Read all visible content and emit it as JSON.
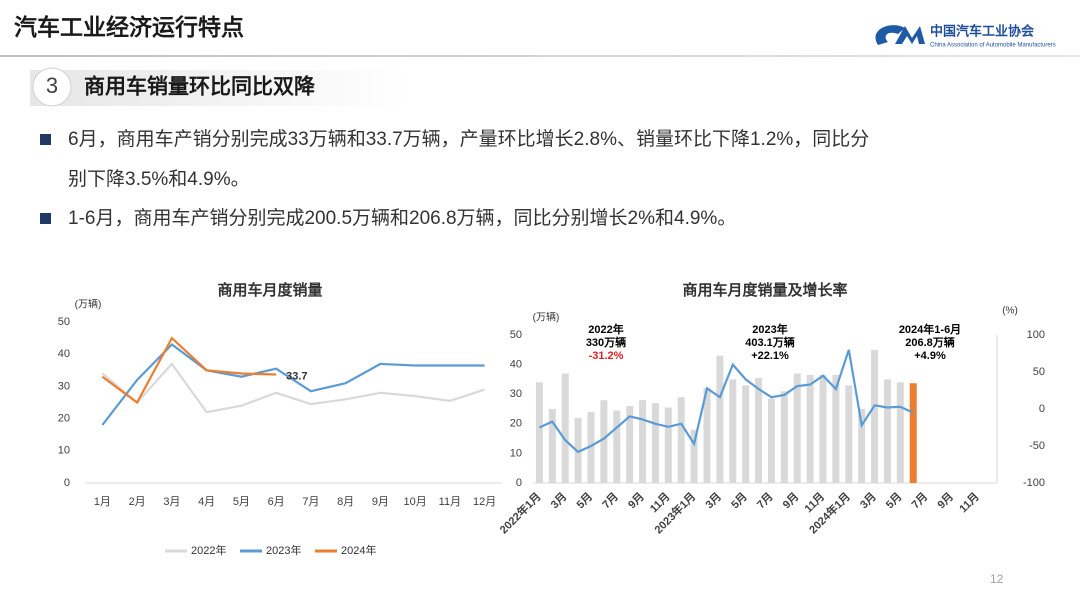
{
  "header": {
    "title": "汽车工业经济运行特点",
    "org_cn": "中国汽车工业协会",
    "org_en": "China Association of Automobile Manufacturers"
  },
  "section": {
    "number": "3",
    "title": "商用车销量环比同比双降"
  },
  "bullets": [
    {
      "lines": [
        "6月，商用车产销分别完成33万辆和33.7万辆，产量环比增长2.8%、销量环比下降1.2%，同比分",
        "别下降3.5%和4.9%。"
      ]
    },
    {
      "lines": [
        "1-6月，商用车产销分别完成200.5万辆和206.8万辆，同比分别增长2%和4.9%。"
      ]
    }
  ],
  "chart_data": [
    {
      "type": "line",
      "title": "商用车月度销量",
      "y_unit": "(万辆)",
      "categories": [
        "1月",
        "2月",
        "3月",
        "4月",
        "5月",
        "6月",
        "7月",
        "8月",
        "9月",
        "10月",
        "11月",
        "12月"
      ],
      "ylim": [
        0,
        50
      ],
      "yticks": [
        0,
        10,
        20,
        30,
        40,
        50
      ],
      "grid": false,
      "legend": "bottom",
      "series": [
        {
          "name": "2022年",
          "color": "#d9d9d9",
          "values": [
            34,
            25,
            37,
            22,
            24,
            28,
            24.5,
            26,
            28,
            27,
            25.5,
            29
          ]
        },
        {
          "name": "2023年",
          "color": "#5b9bd5",
          "values": [
            18,
            32,
            43,
            35,
            33,
            35.5,
            28.5,
            31,
            37,
            36.5,
            36.5,
            36.5
          ]
        },
        {
          "name": "2024年",
          "color": "#ed7d31",
          "values": [
            33,
            25,
            45,
            35,
            34,
            33.7,
            null,
            null,
            null,
            null,
            null,
            null
          ],
          "value_labels": [
            null,
            null,
            null,
            null,
            null,
            "33.7",
            null,
            null,
            null,
            null,
            null,
            null
          ]
        }
      ]
    },
    {
      "type": "bar-line",
      "title": "商用车月度销量及增长率",
      "y_unit": "(万辆)",
      "y2_unit": "(%)",
      "categories": [
        "2022年1月",
        null,
        "3月",
        null,
        "5月",
        null,
        "7月",
        null,
        "9月",
        null,
        "11月",
        null,
        "2023年1月",
        null,
        "3月",
        null,
        "5月",
        null,
        "7月",
        null,
        "9月",
        null,
        "11月",
        null,
        "2024年1月",
        null,
        "3月",
        null,
        "5月",
        null,
        "7月",
        null,
        "9月",
        null,
        "11月",
        null
      ],
      "ylim": [
        0,
        50
      ],
      "yticks": [
        0,
        10,
        20,
        30,
        40,
        50
      ],
      "y2lim": [
        -100,
        100
      ],
      "y2ticks": [
        -100,
        -50,
        0,
        50,
        100
      ],
      "grid": false,
      "series": [
        {
          "type": "bar",
          "color": "#d9d9d9",
          "colors": [
            "#d9d9d9",
            "#d9d9d9",
            "#d9d9d9",
            "#d9d9d9",
            "#d9d9d9",
            "#d9d9d9",
            "#d9d9d9",
            "#d9d9d9",
            "#d9d9d9",
            "#d9d9d9",
            "#d9d9d9",
            "#d9d9d9",
            "#d9d9d9",
            "#d9d9d9",
            "#d9d9d9",
            "#d9d9d9",
            "#d9d9d9",
            "#d9d9d9",
            "#d9d9d9",
            "#d9d9d9",
            "#d9d9d9",
            "#d9d9d9",
            "#d9d9d9",
            "#d9d9d9",
            "#d9d9d9",
            "#d9d9d9",
            "#d9d9d9",
            "#d9d9d9",
            "#d9d9d9",
            "#ed7d31",
            "#d9d9d9",
            "#d9d9d9",
            "#d9d9d9",
            "#d9d9d9",
            "#d9d9d9",
            "#d9d9d9"
          ],
          "values": [
            34,
            25,
            37,
            22,
            24,
            28,
            24.5,
            26,
            28,
            27,
            25.5,
            29,
            18,
            32,
            43,
            35,
            33,
            35.5,
            28.5,
            31,
            37,
            36.5,
            36.5,
            36.5,
            33,
            25,
            45,
            35,
            34,
            33.7,
            null,
            null,
            null,
            null,
            null,
            null
          ]
        },
        {
          "type": "line",
          "axis": "y2",
          "color": "#5b9bd5",
          "values": [
            -25,
            -17,
            -42,
            -58,
            -50,
            -40,
            -25,
            -10,
            -14,
            -20,
            -24,
            -20,
            -47,
            28,
            16,
            60,
            40,
            27,
            16,
            19,
            31,
            33,
            45,
            27,
            80,
            -22,
            5,
            2,
            3,
            -5,
            null,
            null,
            null,
            null,
            null,
            null
          ]
        }
      ],
      "annotations": [
        {
          "lines": [
            "2022年",
            "330万辆",
            "-31.2%"
          ],
          "colors": [
            "#000000",
            "#000000",
            "#e02020"
          ]
        },
        {
          "lines": [
            "2023年",
            "403.1万辆",
            "+22.1%"
          ],
          "colors": [
            "#000000",
            "#000000",
            "#000000"
          ]
        },
        {
          "lines": [
            "2024年1-6月",
            "206.8万辆",
            "+4.9%"
          ],
          "colors": [
            "#000000",
            "#000000",
            "#000000"
          ]
        }
      ]
    }
  ],
  "page_number": "12"
}
